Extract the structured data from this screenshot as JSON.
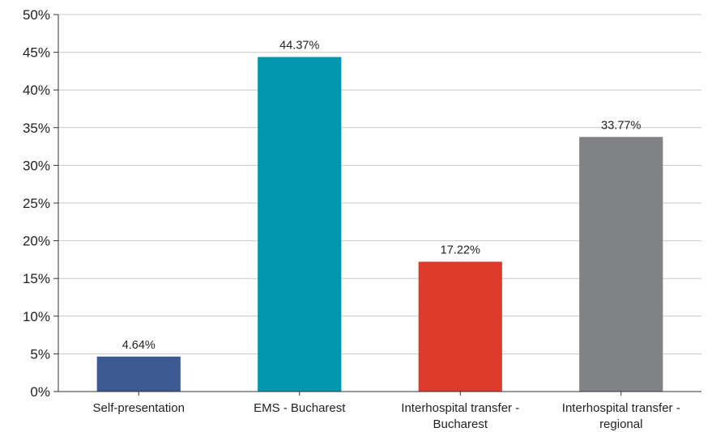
{
  "chart_data": {
    "type": "bar",
    "title": "",
    "xlabel": "",
    "ylabel": "",
    "ylim": [
      0,
      50
    ],
    "y_ticks": [
      0,
      5,
      10,
      15,
      20,
      25,
      30,
      35,
      40,
      45,
      50
    ],
    "y_tick_labels": [
      "0%",
      "5%",
      "10%",
      "15%",
      "20%",
      "25%",
      "30%",
      "35%",
      "40%",
      "45%",
      "50%"
    ],
    "grid": true,
    "legend": "none",
    "categories": [
      [
        "Self-presentation"
      ],
      [
        "EMS - Bucharest"
      ],
      [
        "Interhospital transfer -",
        "Bucharest"
      ],
      [
        "Interhospital transfer -",
        "regional"
      ]
    ],
    "values": [
      4.64,
      44.37,
      17.22,
      33.77
    ],
    "data_labels": [
      "4.64%",
      "44.37%",
      "17.22%",
      "33.77%"
    ],
    "colors": [
      "#3c5a91",
      "#0096ae",
      "#de3a2c",
      "#808285"
    ]
  }
}
